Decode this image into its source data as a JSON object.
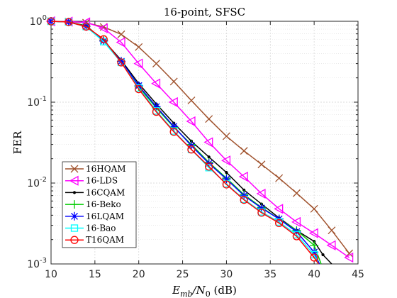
{
  "chart_data": {
    "type": "line",
    "title": "16-point, SFSC",
    "xlabel": "E_mb/N_0 (dB)",
    "xlabel_parts": {
      "main": "E",
      "sub1": "mb",
      "mid": "/N",
      "sub2": "0",
      "tail": " (dB)"
    },
    "ylabel": "FER",
    "xlim": [
      10,
      45
    ],
    "ylim": [
      0.001,
      1
    ],
    "yscale": "log",
    "grid": true,
    "legend_position": "bottom-left",
    "x_ticks": [
      10,
      15,
      20,
      25,
      30,
      35,
      40,
      45
    ],
    "y_ticks": [
      {
        "value": 1,
        "base": "10",
        "exp": "0"
      },
      {
        "value": 0.1,
        "base": "10",
        "exp": "-1"
      },
      {
        "value": 0.01,
        "base": "10",
        "exp": "-2"
      },
      {
        "value": 0.001,
        "base": "10",
        "exp": "-3"
      }
    ],
    "series": [
      {
        "name": "16HQAM",
        "color": "#a0522d",
        "marker": "x",
        "x": [
          10,
          12,
          14,
          16,
          18,
          20,
          22,
          24,
          26,
          28,
          30,
          32,
          34,
          36,
          38,
          40,
          42,
          44
        ],
        "y": [
          1.0,
          0.99,
          0.96,
          0.85,
          0.69,
          0.48,
          0.3,
          0.18,
          0.105,
          0.062,
          0.038,
          0.025,
          0.017,
          0.0115,
          0.0075,
          0.0048,
          0.0026,
          0.00135
        ]
      },
      {
        "name": "16-LDS",
        "color": "#ff00ff",
        "marker": "triangle-left",
        "x": [
          10,
          12,
          14,
          16,
          18,
          20,
          22,
          24,
          26,
          28,
          30,
          32,
          34,
          36,
          38,
          40,
          42,
          44
        ],
        "y": [
          1.0,
          0.99,
          0.97,
          0.82,
          0.55,
          0.3,
          0.17,
          0.1,
          0.058,
          0.032,
          0.019,
          0.012,
          0.0074,
          0.0048,
          0.0033,
          0.0024,
          0.0017,
          0.0012
        ]
      },
      {
        "name": "16CQAM",
        "color": "#000000",
        "marker": "dot",
        "x": [
          10,
          12,
          14,
          16,
          18,
          20,
          22,
          24,
          26,
          28,
          30,
          32,
          34,
          36,
          38,
          40,
          41,
          42
        ],
        "y": [
          1.0,
          0.98,
          0.88,
          0.58,
          0.33,
          0.17,
          0.095,
          0.055,
          0.033,
          0.021,
          0.0135,
          0.0082,
          0.0055,
          0.0037,
          0.0026,
          0.0019,
          0.0013,
          0.001
        ]
      },
      {
        "name": "16-Beko",
        "color": "#00cc00",
        "marker": "plus",
        "x": [
          10,
          12,
          14,
          16,
          18,
          20,
          22,
          24,
          26,
          28,
          30,
          32,
          34,
          36,
          38,
          40,
          40.8
        ],
        "y": [
          1.0,
          0.98,
          0.87,
          0.58,
          0.32,
          0.155,
          0.085,
          0.049,
          0.03,
          0.018,
          0.0115,
          0.0072,
          0.005,
          0.0036,
          0.0026,
          0.0017,
          0.001
        ]
      },
      {
        "name": "16LQAM",
        "color": "#0000ff",
        "marker": "asterisk",
        "x": [
          10,
          12,
          14,
          16,
          18,
          20,
          22,
          24,
          26,
          28,
          30,
          32,
          34,
          36,
          38,
          40,
          40.6
        ],
        "y": [
          1.0,
          0.98,
          0.86,
          0.57,
          0.32,
          0.16,
          0.088,
          0.05,
          0.029,
          0.0175,
          0.0112,
          0.007,
          0.0049,
          0.0036,
          0.0025,
          0.0014,
          0.001
        ]
      },
      {
        "name": "16-Bao",
        "color": "#00ffff",
        "marker": "square",
        "x": [
          10,
          12,
          14,
          16,
          18,
          20,
          22,
          24,
          26,
          28,
          30,
          32,
          34,
          36,
          38,
          40,
          40.5
        ],
        "y": [
          1.0,
          0.98,
          0.86,
          0.56,
          0.31,
          0.15,
          0.078,
          0.044,
          0.026,
          0.0155,
          0.0098,
          0.0063,
          0.0044,
          0.0033,
          0.0023,
          0.0013,
          0.001
        ]
      },
      {
        "name": "T16QAM",
        "color": "#ff0000",
        "marker": "circle",
        "x": [
          10,
          12,
          14,
          16,
          18,
          20,
          22,
          24,
          26,
          28,
          30,
          32,
          34,
          36,
          38,
          40,
          40.5
        ],
        "y": [
          1.0,
          0.98,
          0.86,
          0.6,
          0.31,
          0.145,
          0.076,
          0.043,
          0.026,
          0.016,
          0.0096,
          0.0062,
          0.0043,
          0.0032,
          0.0022,
          0.0012,
          0.001
        ]
      }
    ]
  }
}
